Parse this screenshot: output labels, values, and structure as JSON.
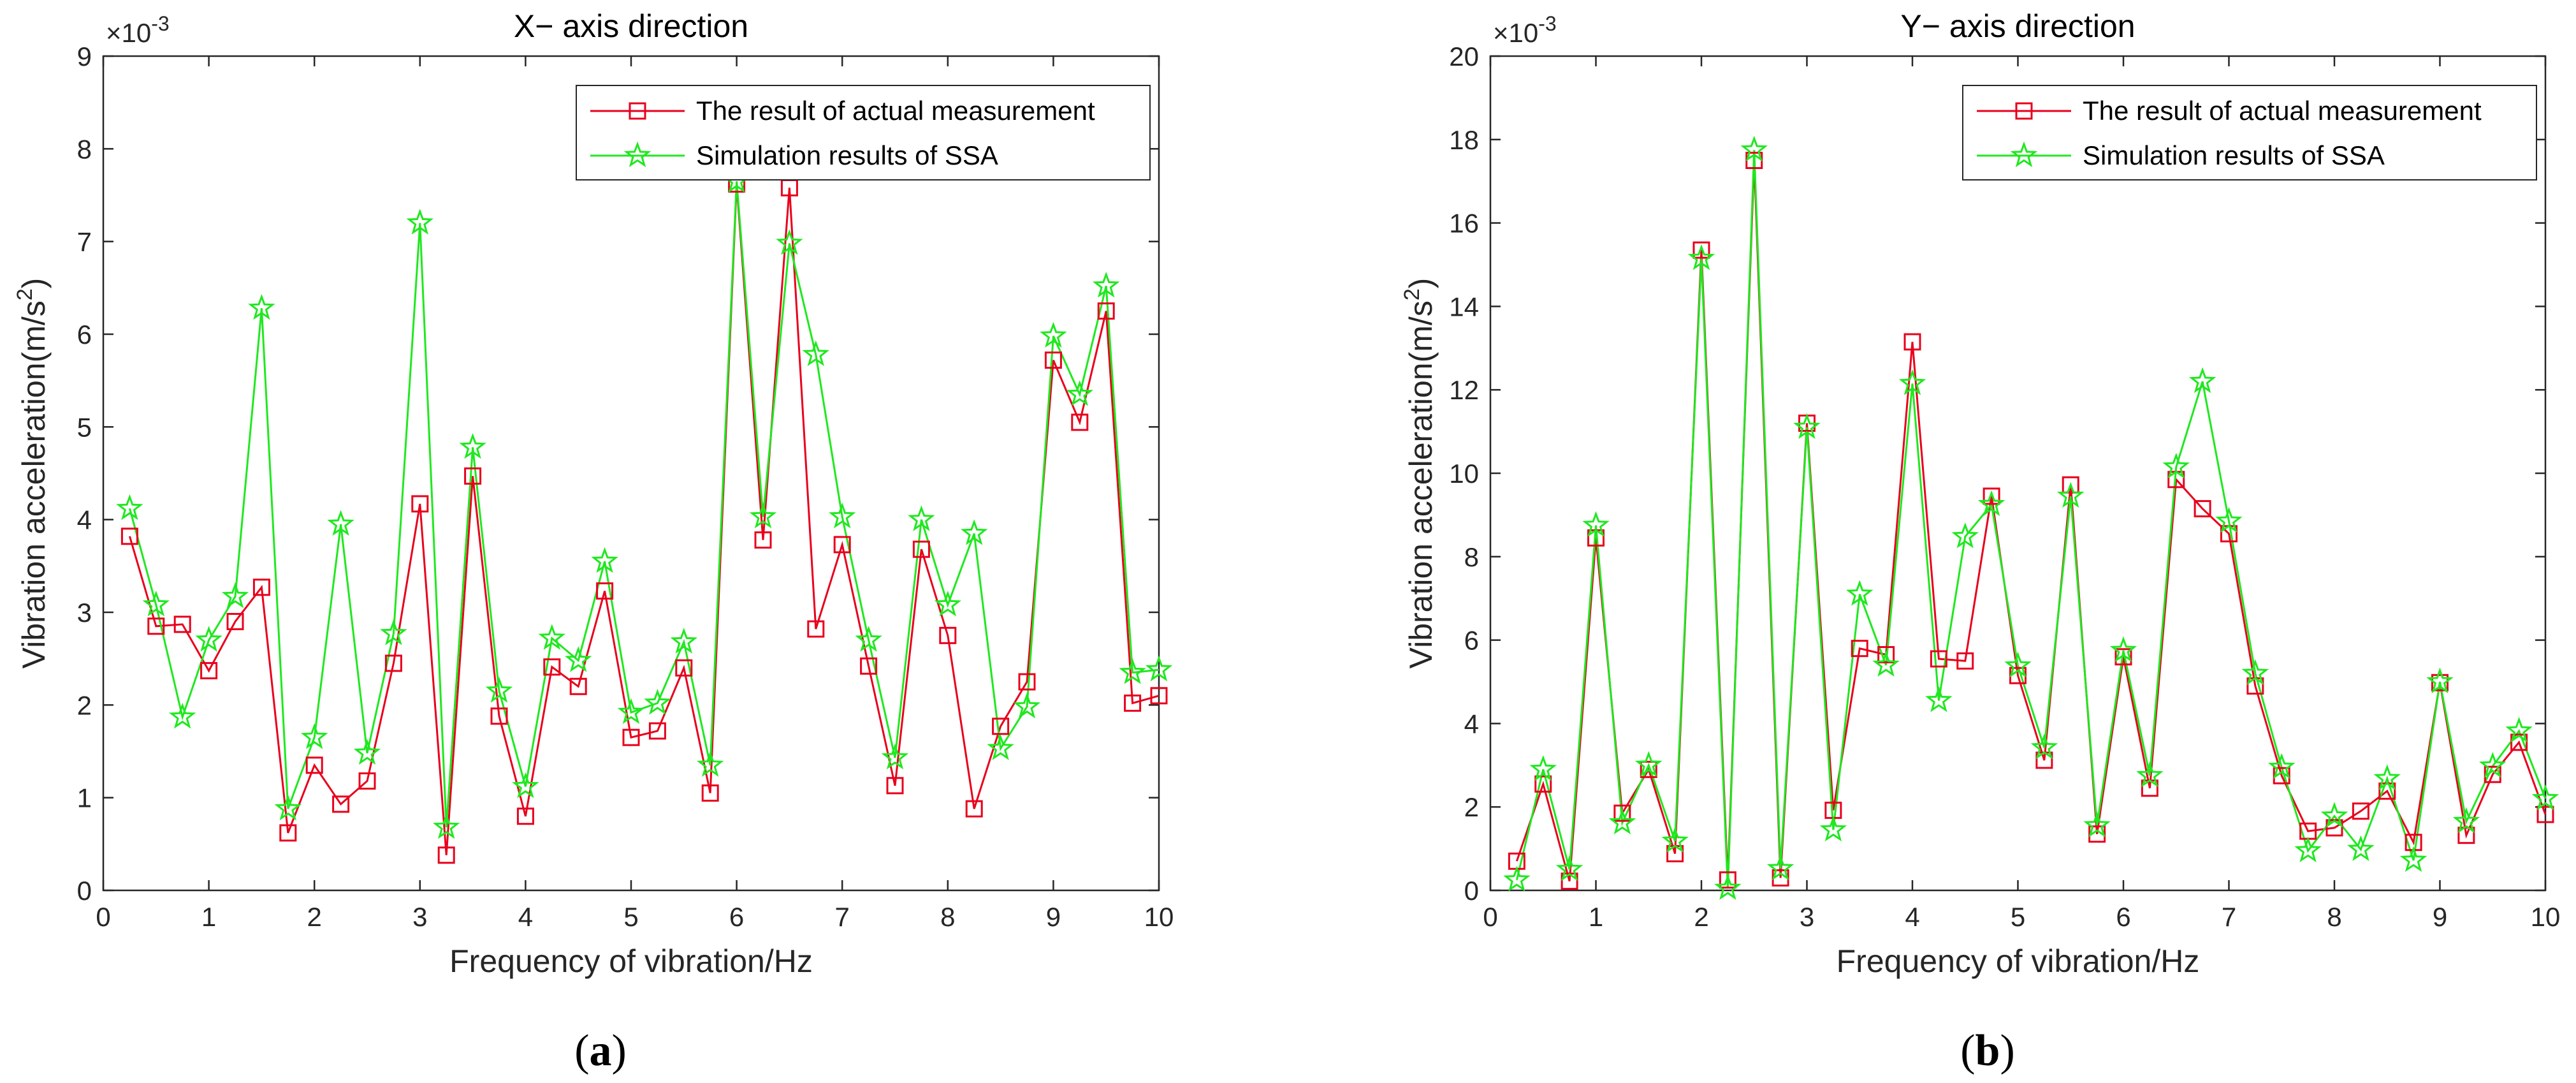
{
  "chart_data": [
    {
      "panel": "a",
      "type": "line",
      "title": "X− axis direction",
      "xlabel": "Frequency of vibration/Hz",
      "ylabel": "Vibration acceleration(m/s^2)",
      "ylabel_main": "Vibration acceleration(m/s",
      "ylabel_sup": "2",
      "ylabel_end": ")",
      "exponent_base": "×10",
      "exponent_power": "-3",
      "xlim": [
        0,
        10
      ],
      "ylim": [
        0,
        9
      ],
      "xticks": [
        0,
        1,
        2,
        3,
        4,
        5,
        6,
        7,
        8,
        9,
        10
      ],
      "yticks": [
        0,
        1,
        2,
        3,
        4,
        5,
        6,
        7,
        8,
        9
      ],
      "legend_position": "top-right",
      "caption": "a",
      "x": [
        0.25,
        0.5,
        0.75,
        1.0,
        1.25,
        1.5,
        1.75,
        2.0,
        2.25,
        2.5,
        2.75,
        3.0,
        3.25,
        3.5,
        3.75,
        4.0,
        4.25,
        4.5,
        4.75,
        5.0,
        5.25,
        5.5,
        5.75,
        6.0,
        6.25,
        6.5,
        6.75,
        7.0,
        7.25,
        7.5,
        7.75,
        8.0,
        8.25,
        8.5,
        8.75,
        9.0,
        9.25,
        9.5,
        9.75,
        10.0
      ],
      "series": [
        {
          "name": "The result of actual measurement",
          "color": "#e8001c",
          "marker": "square",
          "values": [
            3.82,
            2.85,
            2.87,
            2.37,
            2.9,
            3.27,
            0.62,
            1.35,
            0.93,
            1.18,
            2.45,
            4.17,
            0.38,
            4.47,
            1.88,
            0.8,
            2.41,
            2.2,
            3.23,
            1.65,
            1.72,
            2.4,
            1.05,
            7.62,
            3.78,
            7.58,
            2.82,
            3.73,
            2.42,
            1.13,
            3.68,
            2.75,
            0.88,
            1.77,
            2.25,
            5.72,
            5.05,
            6.25,
            2.02,
            2.1
          ]
        },
        {
          "name": "Simulation results of SSA",
          "color": "#1fe81f",
          "marker": "star",
          "values": [
            4.12,
            3.08,
            1.87,
            2.7,
            3.17,
            6.28,
            0.88,
            1.65,
            3.95,
            1.48,
            2.77,
            7.2,
            0.68,
            4.78,
            2.15,
            1.12,
            2.72,
            2.48,
            3.55,
            1.92,
            2.02,
            2.68,
            1.35,
            7.65,
            4.03,
            6.98,
            5.78,
            4.03,
            2.7,
            1.43,
            4.0,
            3.08,
            3.85,
            1.53,
            1.98,
            5.98,
            5.35,
            6.52,
            2.35,
            2.38
          ]
        }
      ]
    },
    {
      "panel": "b",
      "type": "line",
      "title": "Y− axis direction",
      "xlabel": "Frequency of vibration/Hz",
      "ylabel": "Vibration acceleration(m/s^2)",
      "ylabel_main": "Vibration acceleration(m/s",
      "ylabel_sup": "2",
      "ylabel_end": ")",
      "exponent_base": "×10",
      "exponent_power": "-3",
      "xlim": [
        0,
        10
      ],
      "ylim": [
        0,
        20
      ],
      "xticks": [
        0,
        1,
        2,
        3,
        4,
        5,
        6,
        7,
        8,
        9,
        10
      ],
      "yticks": [
        0,
        2,
        4,
        6,
        8,
        10,
        12,
        14,
        16,
        18,
        20
      ],
      "legend_position": "top-right",
      "caption": "b",
      "x": [
        0.25,
        0.5,
        0.75,
        1.0,
        1.25,
        1.5,
        1.75,
        2.0,
        2.25,
        2.5,
        2.75,
        3.0,
        3.25,
        3.5,
        3.75,
        4.0,
        4.25,
        4.5,
        4.75,
        5.0,
        5.25,
        5.5,
        5.75,
        6.0,
        6.25,
        6.5,
        6.75,
        7.0,
        7.25,
        7.5,
        7.75,
        8.0,
        8.25,
        8.5,
        8.75,
        9.0,
        9.25,
        9.5,
        9.75,
        10.0
      ],
      "series": [
        {
          "name": "The result of actual measurement",
          "color": "#e8001c",
          "marker": "square",
          "values": [
            0.7,
            2.55,
            0.22,
            8.45,
            1.85,
            2.9,
            0.88,
            15.35,
            0.25,
            17.5,
            0.3,
            11.2,
            1.92,
            5.8,
            5.65,
            13.15,
            5.55,
            5.5,
            9.45,
            5.15,
            3.12,
            9.72,
            1.35,
            5.6,
            2.45,
            9.85,
            9.15,
            8.55,
            4.9,
            2.75,
            1.42,
            1.5,
            1.9,
            2.38,
            1.15,
            4.98,
            1.32,
            2.78,
            3.55,
            1.82
          ]
        },
        {
          "name": "Simulation results of SSA",
          "color": "#1fe81f",
          "marker": "star",
          "values": [
            0.25,
            2.9,
            0.5,
            8.75,
            1.62,
            3.0,
            1.18,
            15.15,
            0.05,
            17.75,
            0.52,
            11.1,
            1.45,
            7.1,
            5.4,
            12.15,
            4.55,
            8.48,
            9.25,
            5.38,
            3.42,
            9.45,
            1.55,
            5.75,
            2.75,
            10.15,
            12.2,
            8.85,
            5.2,
            2.95,
            0.95,
            1.78,
            0.98,
            2.68,
            0.72,
            5.0,
            1.65,
            2.98,
            3.82,
            2.2
          ]
        }
      ]
    }
  ]
}
